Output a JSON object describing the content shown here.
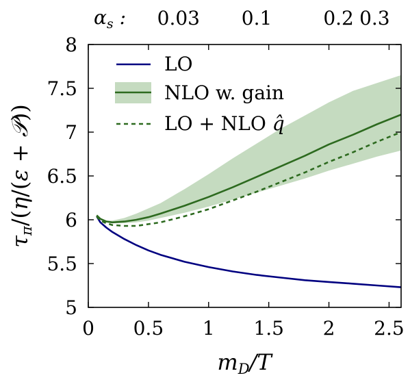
{
  "chart_data": {
    "type": "line",
    "xlabel": "m_D/T",
    "ylabel": "τ_π/(η/(ε+𝒫))",
    "xlim": [
      0,
      2.6
    ],
    "ylim": [
      5,
      8
    ],
    "x_ticks": [
      0,
      0.5,
      1,
      1.5,
      2,
      2.5
    ],
    "x_tick_labels": [
      "0",
      "0.5",
      "1",
      "1.5",
      "2",
      "2.5"
    ],
    "y_ticks": [
      5,
      5.5,
      6,
      6.5,
      7,
      7.5,
      8
    ],
    "y_tick_labels": [
      "5",
      "5.5",
      "6",
      "6.5",
      "7",
      "7.5",
      "8"
    ],
    "top_axis": {
      "label": "αs :",
      "ticks": [
        {
          "x": 0.75,
          "label": "0.03"
        },
        {
          "x": 1.4,
          "label": "0.1"
        },
        {
          "x": 2.08,
          "label": "0.2"
        },
        {
          "x": 2.38,
          "label": "0.3"
        }
      ]
    },
    "legend": {
      "placement": "top-left",
      "entries": [
        {
          "label": "LO",
          "style": "solid",
          "color": "#000080"
        },
        {
          "label": "NLO w. gain",
          "style": "solid-band",
          "color": "#2d6a1f",
          "band_color": "#c5dbc0"
        },
        {
          "label": "LO + NLO q̂",
          "style": "dashed",
          "color": "#2d6a1f"
        }
      ]
    },
    "series": [
      {
        "name": "LO",
        "color": "#000080",
        "style": "solid",
        "x": [
          0.07,
          0.1,
          0.15,
          0.2,
          0.3,
          0.4,
          0.5,
          0.6,
          0.8,
          1.0,
          1.2,
          1.4,
          1.6,
          1.8,
          2.0,
          2.2,
          2.4,
          2.6
        ],
        "y": [
          6.04,
          5.97,
          5.91,
          5.86,
          5.78,
          5.71,
          5.65,
          5.6,
          5.52,
          5.46,
          5.41,
          5.37,
          5.34,
          5.31,
          5.29,
          5.27,
          5.25,
          5.23
        ]
      },
      {
        "name": "NLO w. gain",
        "color": "#2d6a1f",
        "style": "solid",
        "x": [
          0.07,
          0.1,
          0.15,
          0.2,
          0.3,
          0.4,
          0.5,
          0.6,
          0.8,
          1.0,
          1.2,
          1.4,
          1.6,
          1.8,
          2.0,
          2.2,
          2.4,
          2.6
        ],
        "y": [
          6.05,
          6.01,
          5.98,
          5.97,
          5.98,
          6.0,
          6.03,
          6.07,
          6.16,
          6.26,
          6.37,
          6.49,
          6.61,
          6.73,
          6.86,
          6.97,
          7.09,
          7.2
        ],
        "band_low": [
          6.04,
          6.0,
          5.97,
          5.96,
          5.96,
          5.97,
          5.99,
          6.02,
          6.08,
          6.15,
          6.23,
          6.31,
          6.39,
          6.47,
          6.56,
          6.64,
          6.72,
          6.79
        ],
        "band_high": [
          6.06,
          6.02,
          5.99,
          5.99,
          6.02,
          6.07,
          6.13,
          6.19,
          6.35,
          6.52,
          6.7,
          6.87,
          7.04,
          7.19,
          7.34,
          7.47,
          7.56,
          7.65
        ]
      },
      {
        "name": "LO + NLO q̂",
        "color": "#2d6a1f",
        "style": "dashed",
        "x": [
          0.07,
          0.1,
          0.15,
          0.2,
          0.3,
          0.4,
          0.5,
          0.6,
          0.8,
          1.0,
          1.2,
          1.4,
          1.6,
          1.8,
          2.0,
          2.2,
          2.4,
          2.6
        ],
        "y": [
          6.04,
          5.99,
          5.96,
          5.94,
          5.93,
          5.93,
          5.95,
          5.97,
          6.04,
          6.12,
          6.22,
          6.32,
          6.43,
          6.54,
          6.66,
          6.77,
          6.89,
          7.0
        ]
      }
    ]
  }
}
